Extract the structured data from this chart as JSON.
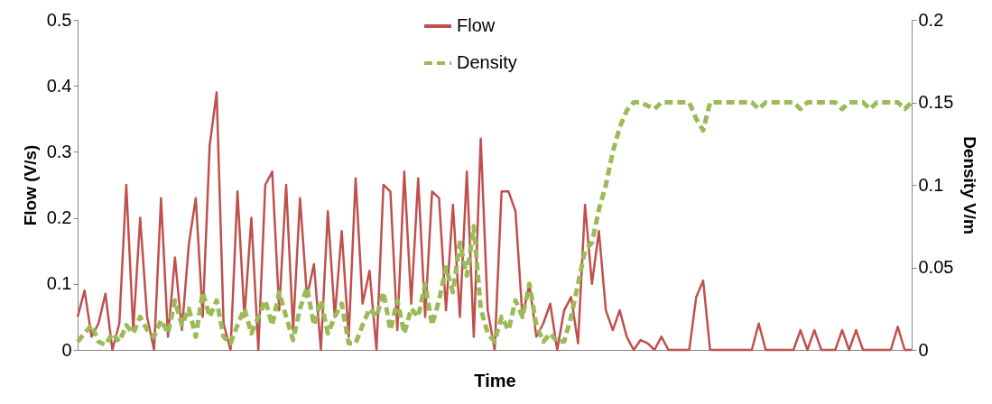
{
  "chart_data": {
    "type": "line",
    "xlabel": "Time",
    "ylabel": "Flow (V/s)",
    "y2label": "Density V/m",
    "categories": [
      null,
      null,
      null,
      null,
      null,
      null,
      null,
      null,
      null,
      null,
      null,
      null,
      null,
      null,
      null,
      null,
      null,
      null,
      null,
      null,
      null,
      null,
      null,
      null,
      null,
      null,
      null,
      null,
      null,
      null,
      null,
      null,
      null,
      null,
      null,
      null,
      null,
      null,
      null,
      null,
      null,
      null,
      null,
      null,
      null,
      null,
      null,
      null,
      null,
      null,
      null,
      null,
      null,
      null,
      null,
      null,
      null,
      null,
      null,
      null,
      null,
      null,
      null,
      null,
      null,
      null,
      null,
      null,
      null,
      null,
      null,
      null,
      null,
      null,
      null,
      null,
      null,
      null,
      null,
      null,
      null,
      null,
      null,
      null,
      null,
      null,
      null,
      null,
      null,
      null,
      null,
      null,
      null,
      null,
      null,
      null,
      null,
      null,
      null,
      null,
      null,
      null,
      null,
      null,
      null,
      null,
      null,
      null,
      null,
      null,
      null,
      null,
      null,
      null,
      null,
      null,
      null,
      null,
      null,
      null,
      null
    ],
    "ylim": [
      0,
      0.5
    ],
    "yticks": [
      0,
      0.1,
      0.2,
      0.3,
      0.4,
      0.5
    ],
    "y2lim": [
      0,
      0.2
    ],
    "y2ticks": [
      0,
      0.05,
      0.1,
      0.15,
      0.2
    ],
    "grid": false,
    "legend": "top",
    "series": [
      {
        "name": "Flow",
        "color": "#c0504d",
        "line_style": "solid",
        "values": [
          0.05,
          0.09,
          0.02,
          0.04,
          0.085,
          0,
          0.04,
          0.25,
          0.03,
          0.2,
          0.05,
          0,
          0.23,
          0.02,
          0.14,
          0.03,
          0.16,
          0.23,
          0.05,
          0.31,
          0.39,
          0.04,
          0,
          0.24,
          0.05,
          0.2,
          0,
          0.25,
          0.27,
          0.06,
          0.25,
          0.03,
          0.23,
          0.08,
          0.13,
          0,
          0.21,
          0.05,
          0.18,
          0.02,
          0.26,
          0.07,
          0.12,
          0,
          0.25,
          0.24,
          0.03,
          0.27,
          0.07,
          0.26,
          0.05,
          0.24,
          0.23,
          0.06,
          0.22,
          0.05,
          0.27,
          0.02,
          0.32,
          0.06,
          0,
          0.24,
          0.24,
          0.21,
          0.05,
          0.1,
          0.02,
          0.04,
          0.07,
          0,
          0.06,
          0.08,
          0.01,
          0.22,
          0.1,
          0.18,
          0.06,
          0.03,
          0.06,
          0.02,
          0,
          0.015,
          0.01,
          0,
          0.02,
          0,
          0,
          0,
          0,
          0.08,
          0.105,
          0,
          0,
          0,
          0,
          0,
          0,
          0,
          0.04,
          0,
          0,
          0,
          0,
          0,
          0.03,
          0,
          0.03,
          0,
          0,
          0,
          0.03,
          0,
          0.03,
          0,
          0,
          0,
          0,
          0,
          0.035,
          0,
          0
        ]
      },
      {
        "name": "Density",
        "color": "#9bbb59",
        "line_style": "dashed",
        "axis": "y2",
        "values": [
          0.005,
          0.01,
          0.015,
          0.005,
          0.003,
          0.01,
          0.005,
          0.015,
          0.01,
          0.02,
          0.012,
          0.008,
          0.018,
          0.01,
          0.03,
          0.015,
          0.025,
          0.008,
          0.035,
          0.02,
          0.03,
          0.008,
          0.004,
          0.015,
          0.025,
          0.01,
          0.02,
          0.03,
          0.015,
          0.035,
          0.02,
          0.006,
          0.025,
          0.038,
          0.015,
          0.03,
          0.01,
          0.02,
          0.028,
          0.004,
          0.004,
          0.015,
          0.025,
          0.02,
          0.035,
          0.012,
          0.03,
          0.01,
          0.025,
          0.02,
          0.04,
          0.015,
          0.03,
          0.05,
          0.035,
          0.065,
          0.045,
          0.075,
          0.025,
          0.01,
          0.005,
          0.02,
          0.012,
          0.03,
          0.02,
          0.04,
          0.015,
          0.005,
          0.01,
          0.005,
          0.005,
          0.02,
          0.04,
          0.06,
          0.065,
          0.085,
          0.1,
          0.12,
          0.135,
          0.145,
          0.15,
          0.15,
          0.148,
          0.146,
          0.15,
          0.15,
          0.15,
          0.15,
          0.15,
          0.14,
          0.133,
          0.15,
          0.15,
          0.15,
          0.15,
          0.15,
          0.15,
          0.15,
          0.146,
          0.15,
          0.15,
          0.15,
          0.15,
          0.15,
          0.146,
          0.15,
          0.15,
          0.15,
          0.15,
          0.15,
          0.146,
          0.15,
          0.15,
          0.15,
          0.146,
          0.15,
          0.15,
          0.15,
          0.15,
          0.146,
          0.15
        ]
      }
    ]
  }
}
